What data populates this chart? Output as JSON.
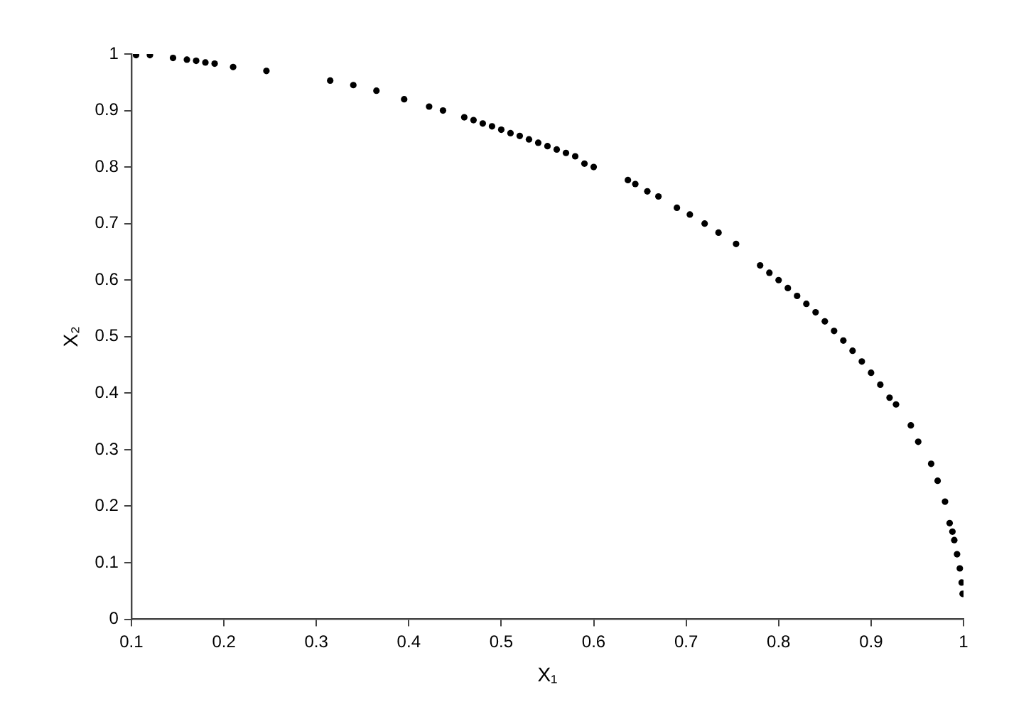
{
  "chart_data": {
    "type": "scatter",
    "xlabel": "X₁",
    "ylabel": "X₂",
    "marker": "circle",
    "grid": false,
    "legend": false,
    "xlim": [
      0.1,
      1
    ],
    "xticks": [
      0.1,
      0.2,
      0.3,
      0.4,
      0.5,
      0.6,
      0.7,
      0.8,
      0.9,
      1
    ],
    "ylim": [
      0,
      1
    ],
    "yticks": [
      0,
      0.1,
      0.2,
      0.3,
      0.4,
      0.5,
      0.6,
      0.7,
      0.8,
      0.9,
      1
    ],
    "series": [
      {
        "color": "#000000",
        "x": [
          0.105,
          0.12,
          0.145,
          0.16,
          0.17,
          0.18,
          0.19,
          0.21,
          0.246,
          0.315,
          0.34,
          0.365,
          0.395,
          0.422,
          0.437,
          0.46,
          0.47,
          0.48,
          0.49,
          0.5,
          0.51,
          0.52,
          0.53,
          0.54,
          0.55,
          0.56,
          0.57,
          0.58,
          0.59,
          0.6,
          0.637,
          0.645,
          0.658,
          0.67,
          0.69,
          0.704,
          0.72,
          0.735,
          0.754,
          0.78,
          0.79,
          0.8,
          0.81,
          0.82,
          0.83,
          0.84,
          0.85,
          0.86,
          0.87,
          0.88,
          0.89,
          0.9,
          0.91,
          0.92,
          0.927,
          0.943,
          0.951,
          0.965,
          0.972,
          0.98,
          0.985,
          0.988,
          0.99,
          0.993,
          0.996,
          0.998,
          0.999
        ],
        "values": [
          0.998,
          0.998,
          0.993,
          0.99,
          0.988,
          0.985,
          0.983,
          0.977,
          0.97,
          0.953,
          0.945,
          0.935,
          0.92,
          0.907,
          0.9,
          0.888,
          0.883,
          0.877,
          0.872,
          0.866,
          0.86,
          0.855,
          0.849,
          0.843,
          0.837,
          0.831,
          0.825,
          0.819,
          0.806,
          0.8,
          0.777,
          0.77,
          0.757,
          0.748,
          0.728,
          0.716,
          0.7,
          0.684,
          0.664,
          0.626,
          0.613,
          0.6,
          0.586,
          0.572,
          0.558,
          0.543,
          0.527,
          0.51,
          0.493,
          0.475,
          0.456,
          0.436,
          0.415,
          0.392,
          0.38,
          0.343,
          0.314,
          0.275,
          0.245,
          0.208,
          0.17,
          0.155,
          0.14,
          0.115,
          0.09,
          0.065,
          0.045
        ]
      }
    ]
  }
}
